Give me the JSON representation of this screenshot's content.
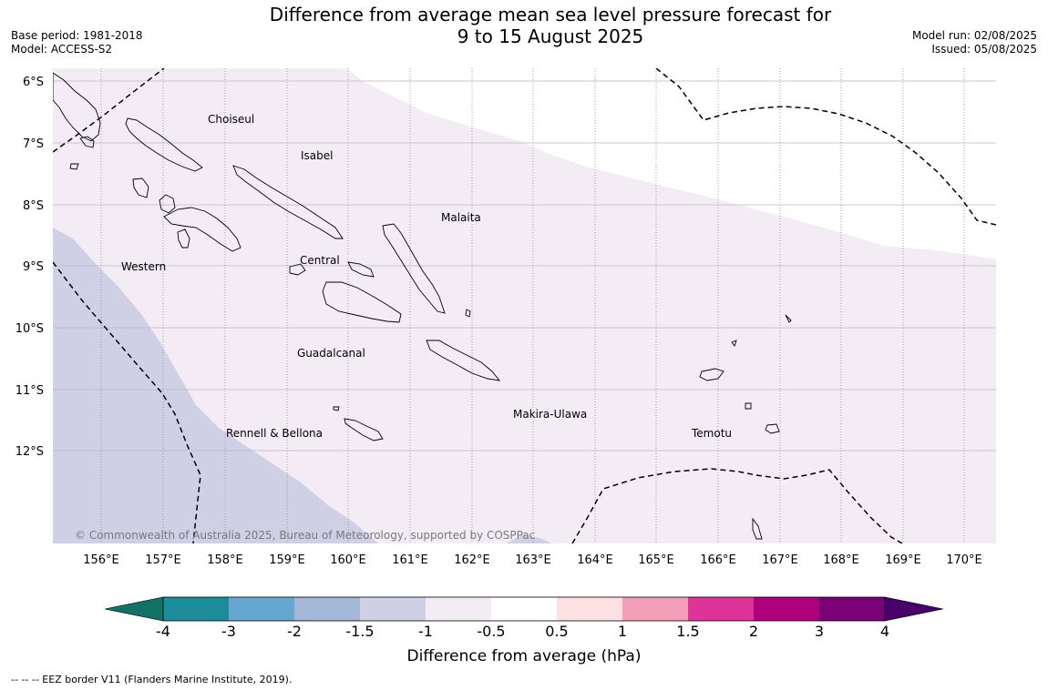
{
  "title": {
    "line1": "Difference from average mean sea level pressure forecast for",
    "line2": "9 to 15 August 2025"
  },
  "meta_left": {
    "base_period": "Base period: 1981-2018",
    "model": "Model: ACCESS-S2"
  },
  "meta_right": {
    "model_run": "Model run: 02/08/2025",
    "issued": "Issued: 05/08/2025"
  },
  "map": {
    "lat_labels": [
      "6°S",
      "7°S",
      "8°S",
      "9°S",
      "10°S",
      "11°S",
      "12°S"
    ],
    "lon_labels": [
      "156°E",
      "157°E",
      "158°E",
      "159°E",
      "160°E",
      "161°E",
      "162°E",
      "163°E",
      "164°E",
      "165°E",
      "166°E",
      "167°E",
      "168°E",
      "169°E",
      "170°E"
    ],
    "regions": [
      "Choiseul",
      "Isabel",
      "Malaita",
      "Western",
      "Central",
      "Guadalcanal",
      "Makira-Ulawa",
      "Rennell & Bellona",
      "Temotu"
    ],
    "copyright": "© Commonwealth of Australia 2025, Bureau of Meteorology, supported by COSPPac"
  },
  "colorbar": {
    "ticks": [
      "-4",
      "-3",
      "-2",
      "-1.5",
      "-1",
      "-0.5",
      "0.5",
      "1",
      "1.5",
      "2",
      "3",
      "4"
    ],
    "colors": [
      "#1b8c99",
      "#64a7d1",
      "#a5b7d6",
      "#cfd0e6",
      "#f3ecf5",
      "#ffffff",
      "#fde0e1",
      "#f49fba",
      "#dc3497",
      "#ad017e",
      "#7a0177"
    ],
    "low_extend": "#127266",
    "high_extend": "#4a006a",
    "label": "Difference from average (hPa)"
  },
  "footnote": "--  --  -- EEZ border V11 (Flanders Marine Institute, 2019)."
}
